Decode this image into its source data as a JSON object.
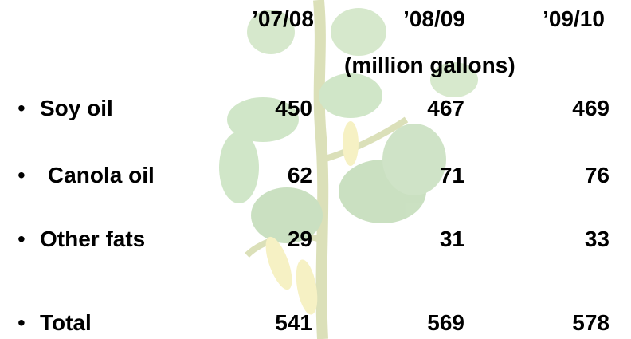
{
  "table": {
    "columns": [
      "’07/08",
      "’08/09",
      "’09/10"
    ],
    "unit": "(million gallons)",
    "rows": [
      {
        "label": "Soy oil",
        "values": [
          "450",
          "467",
          "469"
        ]
      },
      {
        "label": "Canola oil",
        "values": [
          "62",
          "71",
          "76"
        ]
      },
      {
        "label": "Other fats",
        "values": [
          "29",
          "31",
          "33"
        ]
      },
      {
        "label": "Total",
        "values": [
          "541",
          "569",
          "578"
        ]
      }
    ]
  }
}
